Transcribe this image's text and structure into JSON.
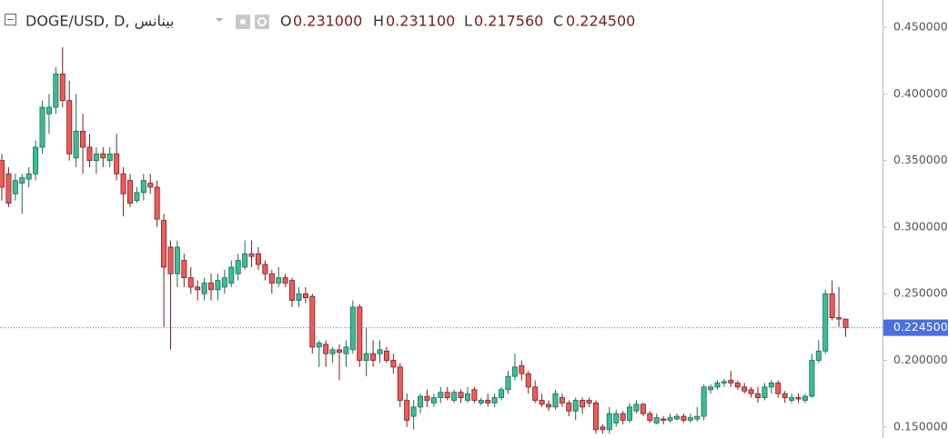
{
  "chart_data": {
    "type": "candlestick",
    "title": "DOGE/USD, D, بينانس",
    "header": {
      "labels": [
        "O",
        "H",
        "L",
        "C"
      ],
      "values": [
        0.231,
        0.2311,
        0.21756,
        0.2245
      ],
      "value_labels": [
        "0.231000",
        "0.231100",
        "0.217560",
        "0.224500"
      ]
    },
    "last_price": {
      "value": 0.2245,
      "label": "0.224500"
    },
    "up_color": "#3cbc98",
    "down_color": "#f05a5a",
    "ylim": [
      0.1417,
      0.4705
    ],
    "yticks": [
      {
        "value": 0.15,
        "label": "0.150000"
      },
      {
        "value": 0.2,
        "label": "0.200000"
      },
      {
        "value": 0.25,
        "label": "0.250000"
      },
      {
        "value": 0.3,
        "label": "0.300000"
      },
      {
        "value": 0.35,
        "label": "0.350000"
      },
      {
        "value": 0.4,
        "label": "0.400000"
      },
      {
        "value": 0.45,
        "label": "0.450000"
      }
    ],
    "open": [
      0.35,
      0.34,
      0.325,
      0.333,
      0.336,
      0.34,
      0.36,
      0.385,
      0.39,
      0.415,
      0.395,
      0.352,
      0.372,
      0.36,
      0.35,
      0.355,
      0.35,
      0.355,
      0.34,
      0.335,
      0.32,
      0.326,
      0.333,
      0.33,
      0.305,
      0.285,
      0.265,
      0.275,
      0.262,
      0.255,
      0.25,
      0.258,
      0.253,
      0.255,
      0.258,
      0.265,
      0.27,
      0.28,
      0.28,
      0.272,
      0.265,
      0.258,
      0.262,
      0.26,
      0.245,
      0.25,
      0.248,
      0.21,
      0.212,
      0.205,
      0.208,
      0.205,
      0.208,
      0.24,
      0.2,
      0.205,
      0.205,
      0.207,
      0.2,
      0.195,
      0.17,
      0.158,
      0.165,
      0.173,
      0.168,
      0.172,
      0.176,
      0.17,
      0.176,
      0.17,
      0.178,
      0.168,
      0.17,
      0.168,
      0.172,
      0.178,
      0.188,
      0.196,
      0.19,
      0.18,
      0.17,
      0.167,
      0.165,
      0.172,
      0.168,
      0.162,
      0.17,
      0.17,
      0.168,
      0.15,
      0.148,
      0.153,
      0.16,
      0.155,
      0.162,
      0.167,
      0.16,
      0.153,
      0.156,
      0.155,
      0.156,
      0.158,
      0.155,
      0.156,
      0.158,
      0.178,
      0.18,
      0.183,
      0.185,
      0.183,
      0.18,
      0.178,
      0.175,
      0.172,
      0.18,
      0.183,
      0.175,
      0.17,
      0.172,
      0.17,
      0.173,
      0.2,
      0.207,
      0.25,
      0.232,
      0.231
    ],
    "high": [
      0.355,
      0.345,
      0.34,
      0.34,
      0.345,
      0.365,
      0.395,
      0.4,
      0.42,
      0.435,
      0.41,
      0.4,
      0.385,
      0.37,
      0.36,
      0.36,
      0.36,
      0.37,
      0.345,
      0.34,
      0.33,
      0.34,
      0.34,
      0.335,
      0.31,
      0.29,
      0.29,
      0.28,
      0.27,
      0.26,
      0.262,
      0.265,
      0.265,
      0.268,
      0.275,
      0.28,
      0.29,
      0.29,
      0.285,
      0.275,
      0.268,
      0.27,
      0.265,
      0.262,
      0.255,
      0.255,
      0.25,
      0.215,
      0.215,
      0.21,
      0.212,
      0.215,
      0.245,
      0.242,
      0.225,
      0.215,
      0.215,
      0.21,
      0.205,
      0.198,
      0.175,
      0.17,
      0.175,
      0.178,
      0.175,
      0.18,
      0.18,
      0.178,
      0.178,
      0.18,
      0.18,
      0.172,
      0.175,
      0.175,
      0.18,
      0.192,
      0.205,
      0.2,
      0.192,
      0.185,
      0.175,
      0.17,
      0.178,
      0.175,
      0.17,
      0.172,
      0.172,
      0.172,
      0.17,
      0.152,
      0.165,
      0.163,
      0.162,
      0.168,
      0.17,
      0.168,
      0.162,
      0.16,
      0.158,
      0.16,
      0.16,
      0.16,
      0.16,
      0.165,
      0.182,
      0.182,
      0.185,
      0.186,
      0.192,
      0.185,
      0.183,
      0.18,
      0.18,
      0.183,
      0.185,
      0.185,
      0.177,
      0.175,
      0.175,
      0.175,
      0.205,
      0.215,
      0.253,
      0.26,
      0.255,
      0.2311
    ],
    "low": [
      0.32,
      0.315,
      0.32,
      0.31,
      0.33,
      0.335,
      0.355,
      0.37,
      0.385,
      0.39,
      0.35,
      0.345,
      0.34,
      0.345,
      0.34,
      0.345,
      0.345,
      0.335,
      0.308,
      0.315,
      0.318,
      0.32,
      0.325,
      0.3,
      0.225,
      0.208,
      0.255,
      0.255,
      0.25,
      0.245,
      0.245,
      0.245,
      0.245,
      0.25,
      0.255,
      0.26,
      0.268,
      0.27,
      0.268,
      0.26,
      0.25,
      0.255,
      0.255,
      0.24,
      0.24,
      0.243,
      0.205,
      0.195,
      0.195,
      0.198,
      0.185,
      0.195,
      0.205,
      0.195,
      0.188,
      0.195,
      0.198,
      0.198,
      0.19,
      0.165,
      0.15,
      0.148,
      0.16,
      0.165,
      0.165,
      0.168,
      0.17,
      0.168,
      0.168,
      0.168,
      0.168,
      0.166,
      0.165,
      0.165,
      0.17,
      0.175,
      0.185,
      0.185,
      0.175,
      0.168,
      0.165,
      0.162,
      0.163,
      0.165,
      0.158,
      0.155,
      0.16,
      0.165,
      0.145,
      0.145,
      0.145,
      0.15,
      0.152,
      0.153,
      0.16,
      0.158,
      0.153,
      0.152,
      0.152,
      0.153,
      0.155,
      0.153,
      0.153,
      0.154,
      0.155,
      0.175,
      0.178,
      0.18,
      0.18,
      0.178,
      0.175,
      0.172,
      0.168,
      0.17,
      0.175,
      0.172,
      0.168,
      0.168,
      0.168,
      0.168,
      0.172,
      0.198,
      0.205,
      0.23,
      0.225,
      0.21756
    ],
    "close": [
      0.33,
      0.318,
      0.335,
      0.337,
      0.34,
      0.36,
      0.39,
      0.39,
      0.415,
      0.395,
      0.355,
      0.372,
      0.36,
      0.35,
      0.355,
      0.352,
      0.355,
      0.34,
      0.325,
      0.318,
      0.326,
      0.335,
      0.33,
      0.306,
      0.27,
      0.265,
      0.285,
      0.262,
      0.255,
      0.253,
      0.258,
      0.253,
      0.26,
      0.262,
      0.27,
      0.275,
      0.28,
      0.278,
      0.272,
      0.265,
      0.258,
      0.262,
      0.258,
      0.245,
      0.25,
      0.247,
      0.21,
      0.213,
      0.205,
      0.208,
      0.206,
      0.21,
      0.24,
      0.2,
      0.205,
      0.2,
      0.208,
      0.2,
      0.195,
      0.17,
      0.155,
      0.165,
      0.173,
      0.17,
      0.172,
      0.176,
      0.172,
      0.176,
      0.172,
      0.175,
      0.17,
      0.17,
      0.168,
      0.172,
      0.178,
      0.188,
      0.195,
      0.19,
      0.18,
      0.17,
      0.167,
      0.165,
      0.175,
      0.168,
      0.162,
      0.17,
      0.165,
      0.168,
      0.148,
      0.148,
      0.16,
      0.16,
      0.155,
      0.165,
      0.167,
      0.16,
      0.155,
      0.157,
      0.155,
      0.157,
      0.158,
      0.155,
      0.157,
      0.158,
      0.18,
      0.18,
      0.183,
      0.184,
      0.183,
      0.18,
      0.177,
      0.175,
      0.172,
      0.18,
      0.183,
      0.175,
      0.172,
      0.172,
      0.171,
      0.173,
      0.2,
      0.207,
      0.25,
      0.232,
      0.231,
      0.2245
    ]
  }
}
